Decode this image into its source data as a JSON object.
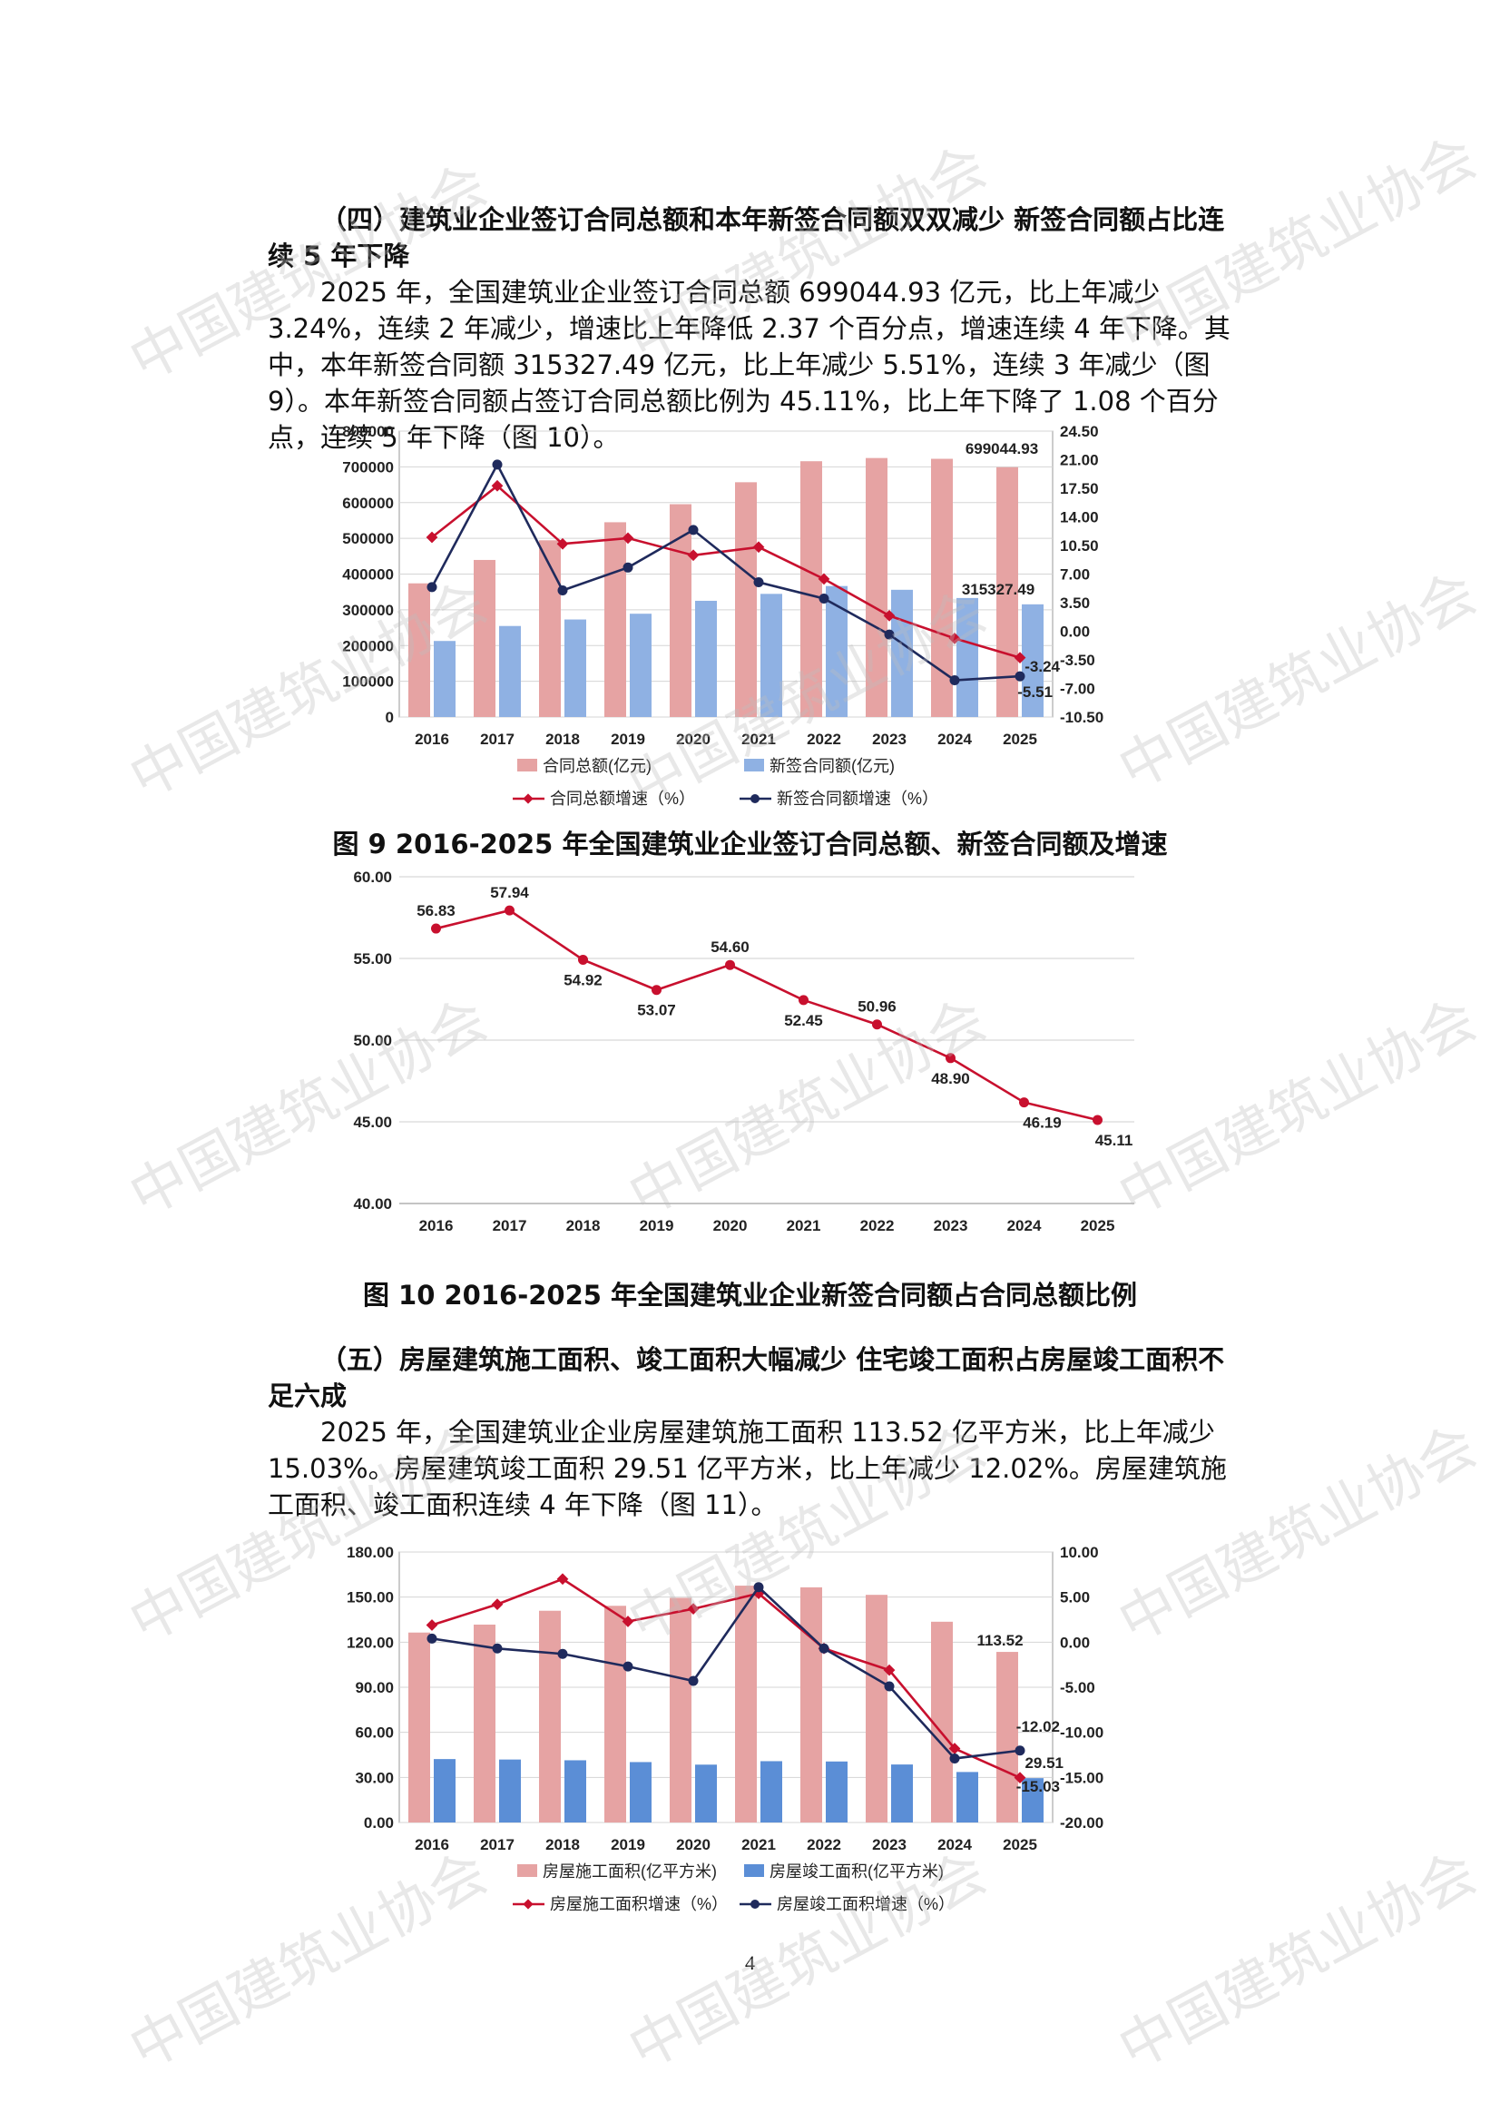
{
  "watermark": "中国建筑业协会",
  "section4": {
    "heading": "（四）建筑业企业签订合同总额和本年新签合同额双双减少 新签合同额占比连续 5 年下降",
    "body": "2025 年，全国建筑业企业签订合同总额 699044.93 亿元，比上年减少 3.24%，连续 2 年减少，增速比上年降低 2.37 个百分点，增速连续 4 年下降。其中，本年新签合同额 315327.49 亿元，比上年减少 5.51%，连续 3 年减少（图 9）。本年新签合同额占签订合同总额比例为 45.11%，比上年下降了 1.08 个百分点，连续 5 年下降（图 10）。"
  },
  "fig9": {
    "caption": "图 9 2016-2025 年全国建筑业企业签订合同总额、新签合同额及增速",
    "legend": [
      "合同总额(亿元)",
      "新签合同额(亿元)",
      "合同总额增速（%）",
      "新签合同额增速（%）"
    ],
    "left_ticks": [
      "800000",
      "700000",
      "600000",
      "500000",
      "400000",
      "300000",
      "200000",
      "100000",
      "0"
    ],
    "right_ticks": [
      "24.50",
      "21.00",
      "17.50",
      "14.00",
      "10.50",
      "7.00",
      "3.50",
      "0.00",
      "-3.50",
      "-7.00",
      "-10.50"
    ],
    "labels": {
      "total_2025": "699044.93",
      "new_2025": "315327.49",
      "total_growth_2025": "-3.24",
      "new_growth_2025": "-5.51"
    }
  },
  "fig10": {
    "caption": "图 10 2016-2025 年全国建筑业企业新签合同额占合同总额比例",
    "y_ticks": [
      "60.00",
      "55.00",
      "50.00",
      "45.00",
      "40.00"
    ]
  },
  "section5": {
    "heading": "（五）房屋建筑施工面积、竣工面积大幅减少 住宅竣工面积占房屋竣工面积不足六成",
    "body": "2025 年，全国建筑业企业房屋建筑施工面积 113.52 亿平方米，比上年减少 15.03%。房屋建筑竣工面积 29.51 亿平方米，比上年减少 12.02%。房屋建筑施工面积、竣工面积连续 4 年下降（图 11）。"
  },
  "fig11": {
    "legend": [
      "房屋施工面积(亿平方米)",
      "房屋竣工面积(亿平方米)",
      "房屋施工面积增速（%）",
      "房屋竣工面积增速（%）"
    ],
    "left_ticks": [
      "180.00",
      "150.00",
      "120.00",
      "90.00",
      "60.00",
      "30.00",
      "0.00"
    ],
    "right_ticks": [
      "10.00",
      "5.00",
      "0.00",
      "-5.00",
      "-10.00",
      "-15.00",
      "-20.00"
    ],
    "labels": {
      "area_2025": "113.52",
      "done_2025": "29.51",
      "area_growth_2025": "-15.03",
      "done_growth_2025": "-12.02"
    }
  },
  "page_number": "4",
  "colors": {
    "bar_pink": "#e6a3a3",
    "bar_blue": "#8fb1e3",
    "bar_blue2": "#5b8ed6",
    "line_red": "#c8102e",
    "line_navy": "#1f2a5c"
  },
  "chart_data": [
    {
      "type": "bar",
      "categories": [
        "2016",
        "2017",
        "2018",
        "2019",
        "2020",
        "2021",
        "2022",
        "2023",
        "2024",
        "2025"
      ],
      "series": [
        {
          "name": "合同总额(亿元)",
          "kind": "bar",
          "axis": "left",
          "values": [
            374000,
            439500,
            494500,
            545000,
            595500,
            656900,
            715700,
            724700,
            722500,
            699044.93
          ]
        },
        {
          "name": "新签合同额(亿元)",
          "kind": "bar",
          "axis": "left",
          "values": [
            212800,
            254700,
            272900,
            289000,
            325200,
            344600,
            366500,
            356000,
            333000,
            315327.49
          ]
        },
        {
          "name": "合同总额增速（%）",
          "kind": "line",
          "axis": "right",
          "values": [
            11.5,
            17.8,
            10.7,
            11.4,
            9.3,
            10.3,
            6.4,
            1.9,
            -0.87,
            -3.24
          ]
        },
        {
          "name": "新签合同额增速（%）",
          "kind": "line",
          "axis": "right",
          "values": [
            5.4,
            20.4,
            5.0,
            7.8,
            12.4,
            6.0,
            4.0,
            -0.4,
            -6.0,
            -5.51
          ]
        }
      ],
      "ylim_left": [
        0,
        800000
      ],
      "ylim_right": [
        -10.5,
        24.5
      ],
      "legend": "bottom"
    },
    {
      "type": "line",
      "categories": [
        "2016",
        "2017",
        "2018",
        "2019",
        "2020",
        "2021",
        "2022",
        "2023",
        "2024",
        "2025"
      ],
      "series": [
        {
          "values": [
            56.83,
            57.94,
            54.92,
            53.07,
            54.6,
            52.45,
            50.96,
            48.9,
            46.19,
            45.11
          ]
        }
      ],
      "ylim": [
        40,
        60
      ],
      "grid": true
    },
    {
      "type": "bar",
      "categories": [
        "2016",
        "2017",
        "2018",
        "2019",
        "2020",
        "2021",
        "2022",
        "2023",
        "2024",
        "2025"
      ],
      "series": [
        {
          "name": "房屋施工面积(亿平方米)",
          "kind": "bar",
          "axis": "left",
          "values": [
            126.4,
            131.7,
            140.9,
            144.2,
            149.5,
            157.6,
            156.5,
            151.5,
            133.6,
            113.52
          ]
        },
        {
          "name": "房屋竣工面积(亿平方米)",
          "kind": "bar",
          "axis": "left",
          "values": [
            42.2,
            41.9,
            41.4,
            40.2,
            38.5,
            40.8,
            40.6,
            38.6,
            33.6,
            29.51
          ]
        },
        {
          "name": "房屋施工面积增速（%）",
          "kind": "line",
          "axis": "right",
          "values": [
            1.9,
            4.2,
            7.0,
            2.3,
            3.7,
            5.4,
            -0.7,
            -3.1,
            -11.8,
            -15.03
          ]
        },
        {
          "name": "房屋竣工面积增速（%）",
          "kind": "line",
          "axis": "right",
          "values": [
            0.4,
            -0.7,
            -1.3,
            -2.7,
            -4.3,
            6.1,
            -0.7,
            -4.9,
            -12.9,
            -12.02
          ]
        }
      ],
      "ylim_left": [
        0,
        180
      ],
      "ylim_right": [
        -20,
        10
      ],
      "legend": "bottom"
    }
  ]
}
